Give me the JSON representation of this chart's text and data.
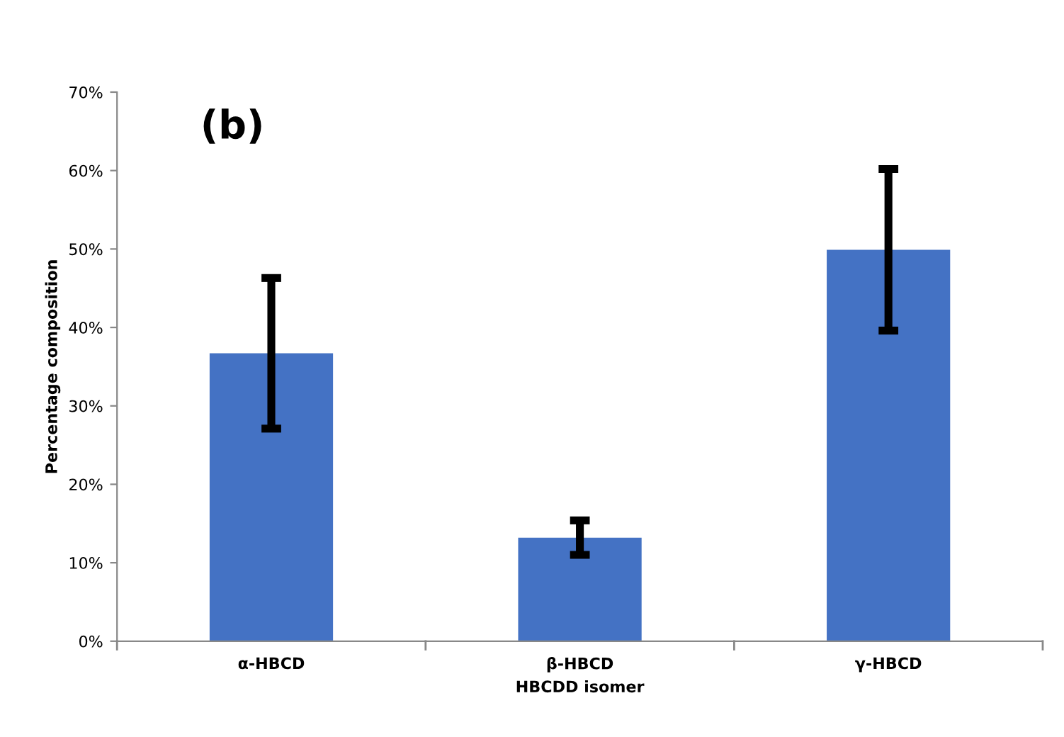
{
  "chart_data": {
    "type": "bar",
    "xlabel": "HBCDD isomer",
    "ylabel": "Percentage composition",
    "annotations": [
      "(b)"
    ],
    "categories": [
      "α-HBCD",
      "β-HBCD",
      "γ-HBCD"
    ],
    "values": [
      36.7,
      13.2,
      49.9
    ],
    "errors": [
      9.6,
      2.2,
      10.3
    ],
    "color": "#4472c4",
    "ylim": [
      0,
      70
    ],
    "yticks": [
      {
        "value": 0,
        "label": "0%"
      },
      {
        "value": 10,
        "label": "10%"
      },
      {
        "value": 20,
        "label": "20%"
      },
      {
        "value": 30,
        "label": "30%"
      },
      {
        "value": 40,
        "label": "40%"
      },
      {
        "value": 50,
        "label": "50%"
      },
      {
        "value": 60,
        "label": "60%"
      },
      {
        "value": 70,
        "label": "70%"
      }
    ],
    "grid": false
  }
}
